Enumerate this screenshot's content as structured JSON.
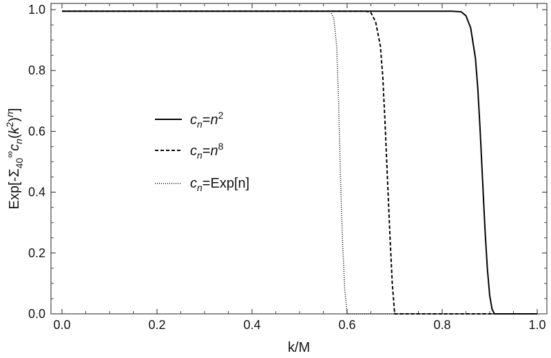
{
  "chart_data": {
    "type": "line",
    "title": "",
    "xlabel": "k/M",
    "ylabel": "Exp[-Σ40∞ cn (k²)ⁿ]",
    "xlim": [
      -0.01,
      1.01
    ],
    "ylim": [
      0,
      1.0
    ],
    "x_ticks": [
      0.0,
      0.2,
      0.4,
      0.6,
      0.8,
      1.0
    ],
    "x_tick_labels": [
      "0.0",
      "0.2",
      "0.4",
      "0.6",
      "0.8",
      "1.0"
    ],
    "y_ticks": [
      0.0,
      0.2,
      0.4,
      0.6,
      0.8,
      1.0
    ],
    "y_tick_labels": [
      "0.0",
      "0.2",
      "0.4",
      "0.6",
      "0.8",
      "1.0"
    ],
    "grid": false,
    "legend_position": "center-left",
    "series": [
      {
        "name": "cn=n2",
        "style": "solid",
        "points": [
          [
            0.0,
            0.995
          ],
          [
            0.82,
            0.995
          ],
          [
            0.84,
            0.993
          ],
          [
            0.85,
            0.98
          ],
          [
            0.86,
            0.94
          ],
          [
            0.87,
            0.84
          ],
          [
            0.875,
            0.74
          ],
          [
            0.88,
            0.6
          ],
          [
            0.885,
            0.44
          ],
          [
            0.89,
            0.28
          ],
          [
            0.895,
            0.15
          ],
          [
            0.9,
            0.06
          ],
          [
            0.905,
            0.015
          ],
          [
            0.91,
            0.0
          ],
          [
            1.0,
            0.0
          ]
        ]
      },
      {
        "name": "cn=n8",
        "style": "dashed",
        "points": [
          [
            0.0,
            0.995
          ],
          [
            0.64,
            0.995
          ],
          [
            0.65,
            0.99
          ],
          [
            0.66,
            0.96
          ],
          [
            0.67,
            0.88
          ],
          [
            0.675,
            0.78
          ],
          [
            0.68,
            0.62
          ],
          [
            0.685,
            0.44
          ],
          [
            0.69,
            0.26
          ],
          [
            0.695,
            0.1
          ],
          [
            0.7,
            0.0
          ],
          [
            1.0,
            0.0
          ]
        ]
      },
      {
        "name": "cn=Exp[n]",
        "style": "dotted",
        "points": [
          [
            0.0,
            0.995
          ],
          [
            0.565,
            0.995
          ],
          [
            0.572,
            0.97
          ],
          [
            0.578,
            0.88
          ],
          [
            0.582,
            0.7
          ],
          [
            0.586,
            0.45
          ],
          [
            0.59,
            0.25
          ],
          [
            0.595,
            0.08
          ],
          [
            0.6,
            0.0
          ],
          [
            1.0,
            0.0
          ]
        ]
      }
    ]
  },
  "legend": [
    {
      "base": "c",
      "sub": "n",
      "eq": "=",
      "rhs": "n",
      "sup": "2"
    },
    {
      "base": "c",
      "sub": "n",
      "eq": "=",
      "rhs": "n",
      "sup": "8"
    },
    {
      "base": "c",
      "sub": "n",
      "eq": "=",
      "rhs": "Exp[n]",
      "sup": ""
    }
  ],
  "ylabel_parts": {
    "prefix": "Exp[-Σ",
    "sub40": "40",
    "supinf": "∞",
    "c": "c",
    "n_sub": "n",
    "open": "(",
    "k": "k",
    "sup2": "2",
    "close": ")",
    "supn": "n",
    "end": "]"
  }
}
